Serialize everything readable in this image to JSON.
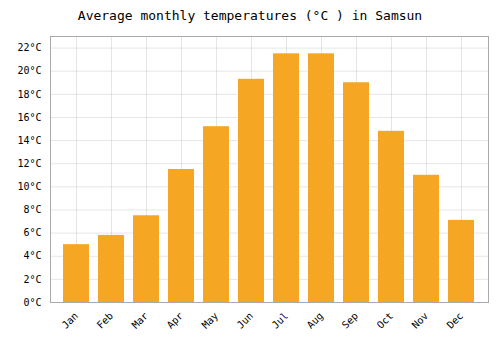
{
  "chart_data": {
    "type": "bar",
    "title": "Average monthly temperatures (°C ) in Samsun",
    "categories": [
      "Jan",
      "Feb",
      "Mar",
      "Apr",
      "May",
      "Jun",
      "Jul",
      "Aug",
      "Sep",
      "Oct",
      "Nov",
      "Dec"
    ],
    "values": [
      5.0,
      5.8,
      7.5,
      11.5,
      15.2,
      19.3,
      21.5,
      21.5,
      19.0,
      14.8,
      11.0,
      7.1
    ],
    "color": "#F5A623",
    "ylim": [
      0,
      23
    ],
    "yticks": [
      {
        "value": 0,
        "label": "0°C"
      },
      {
        "value": 2,
        "label": "2°C"
      },
      {
        "value": 4,
        "label": "4°C"
      },
      {
        "value": 6,
        "label": "6°C"
      },
      {
        "value": 8,
        "label": "8°C"
      },
      {
        "value": 10,
        "label": "10°C"
      },
      {
        "value": 12,
        "label": "12°C"
      },
      {
        "value": 14,
        "label": "14°C"
      },
      {
        "value": 16,
        "label": "16°C"
      },
      {
        "value": 18,
        "label": "18°C"
      },
      {
        "value": 20,
        "label": "20°C"
      },
      {
        "value": 22,
        "label": "22°C"
      }
    ],
    "grid": true
  }
}
